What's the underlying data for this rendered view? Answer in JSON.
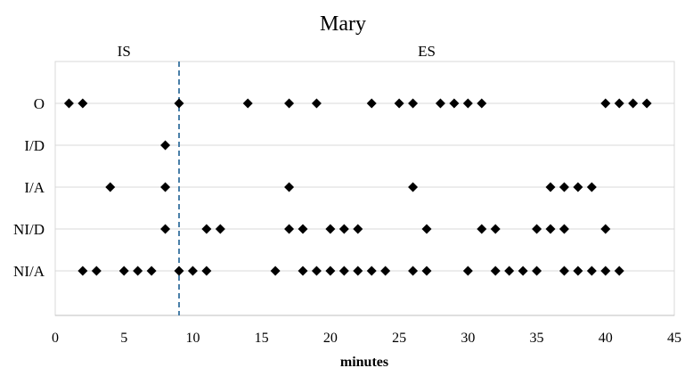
{
  "chart_data": {
    "type": "scatter",
    "title": "Mary",
    "xlabel": "minutes",
    "ylabel": "",
    "xlim": [
      0,
      45
    ],
    "xticks": [
      0,
      5,
      10,
      15,
      20,
      25,
      30,
      35,
      40,
      45
    ],
    "categories": [
      "O",
      "I/D",
      "I/A",
      "NI/D",
      "NI/A"
    ],
    "regions": [
      {
        "label": "IS",
        "x": 5
      },
      {
        "label": "ES",
        "x": 27
      }
    ],
    "divider": {
      "x": 9,
      "style": "dashed",
      "color": "#4a7fa8"
    },
    "marker": {
      "shape": "diamond",
      "color": "#000000"
    },
    "grid": "horizontal",
    "series": [
      {
        "category": "O",
        "x": [
          1,
          2,
          9,
          14,
          17,
          19,
          23,
          25,
          26,
          28,
          29,
          30,
          31,
          40,
          41,
          42,
          43
        ]
      },
      {
        "category": "I/D",
        "x": [
          8
        ]
      },
      {
        "category": "I/A",
        "x": [
          4,
          8,
          17,
          26,
          36,
          37,
          38,
          39
        ]
      },
      {
        "category": "NI/D",
        "x": [
          8,
          11,
          12,
          17,
          18,
          20,
          21,
          22,
          27,
          31,
          32,
          35,
          36,
          37,
          40
        ]
      },
      {
        "category": "NI/A",
        "x": [
          2,
          3,
          5,
          6,
          7,
          9,
          10,
          11,
          16,
          18,
          19,
          20,
          21,
          22,
          23,
          24,
          26,
          27,
          30,
          32,
          33,
          34,
          35,
          37,
          38,
          39,
          40,
          41
        ]
      }
    ]
  }
}
